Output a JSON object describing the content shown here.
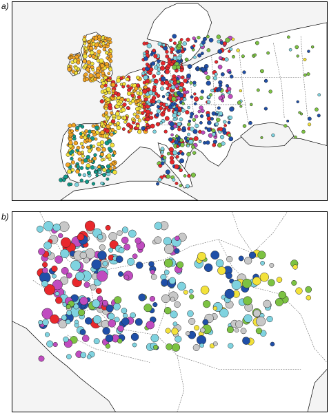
{
  "panels": [
    {
      "label": "a)"
    },
    {
      "label": "b)"
    }
  ],
  "legend_colors": {
    "orange": "#f5a623",
    "yellow": "#f3e23a",
    "red": "#e8282c",
    "cyan": "#7fd3e0",
    "blue": "#1f4fa8",
    "green": "#7cc242",
    "magenta": "#c04cc0",
    "teal": "#129a8a",
    "grey": "#c8c8c8"
  }
}
